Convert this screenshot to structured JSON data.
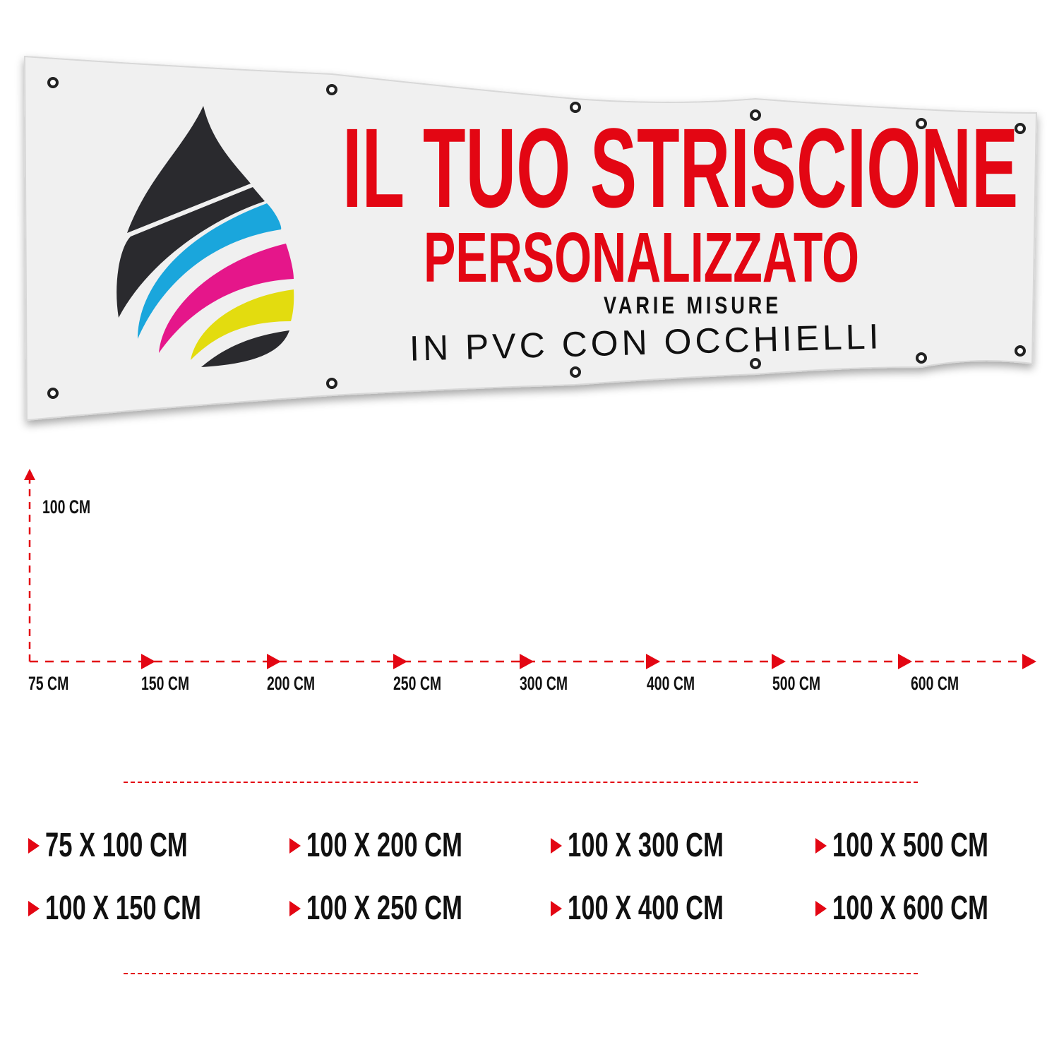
{
  "banner": {
    "headline_line1": "IL TUO STRISCIONE",
    "headline_line2": "PERSONALIZZATO",
    "subtitle": "VARIE MISURE",
    "material": "IN PVC CON OCCHIELLI",
    "colors": {
      "headline": "#e30613",
      "logo": [
        "#2a2a2e",
        "#1aa6dc",
        "#e5168a",
        "#e3dc0f"
      ]
    },
    "logo_icon": "cmyk-ink-drop-icon"
  },
  "diagram": {
    "height_label": "100 CM",
    "width_labels": [
      "75 CM",
      "150 CM",
      "200 CM",
      "250 CM",
      "300 CM",
      "400 CM",
      "500 CM",
      "600 CM"
    ]
  },
  "sizes": [
    "75 X 100 CM",
    "100 X 200 CM",
    "100 X 300 CM",
    "100 X 500 CM",
    "100 X 150 CM",
    "100 X 250 CM",
    "100 X 400 CM",
    "100 X 600 CM"
  ]
}
